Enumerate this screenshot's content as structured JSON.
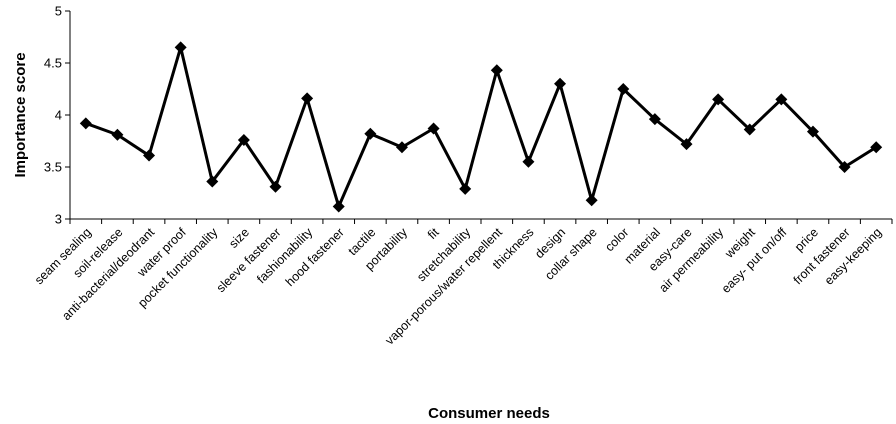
{
  "chart_data": {
    "type": "line",
    "title": "",
    "xlabel": "Consumer needs",
    "ylabel": "Importance score",
    "ylim": [
      3,
      5
    ],
    "yticks": [
      "3",
      "3.5",
      "4",
      "4.5",
      "5"
    ],
    "grid": false,
    "marker": "diamond",
    "line_color": "#000000",
    "categories": [
      "seam sealing",
      "soil-release",
      "anti-bacterial/deodrant",
      "water proof",
      "pocket functionality",
      "size",
      "sleeve fastener",
      "fashionability",
      "hood fastener",
      "tactile",
      "portability",
      "fit",
      "stretchability",
      "vapor-porous/water repellent",
      "thickness",
      "design",
      "collar shape",
      "color",
      "material",
      "easy-care",
      "air permeability",
      "weight",
      "easy- put on/off",
      "price",
      "front fastener",
      "easy-keeping"
    ],
    "values": [
      3.92,
      3.81,
      3.61,
      4.65,
      3.36,
      3.76,
      3.31,
      4.16,
      3.12,
      3.82,
      3.69,
      3.87,
      3.29,
      4.43,
      3.55,
      4.3,
      3.18,
      4.25,
      3.96,
      3.72,
      4.15,
      3.86,
      4.15,
      3.84,
      3.5,
      3.69
    ]
  }
}
